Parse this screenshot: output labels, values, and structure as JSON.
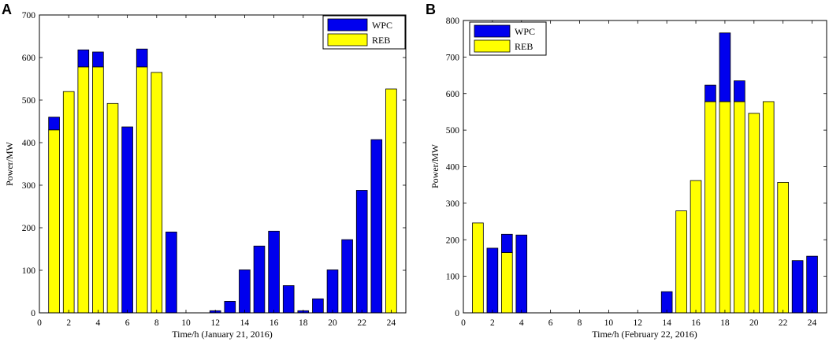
{
  "colors": {
    "wpc": "#0000ee",
    "reb": "#ffff00",
    "axis": "#000000",
    "background": "#ffffff"
  },
  "chart_data": [
    {
      "panel_label": "A",
      "type": "bar",
      "stacked": true,
      "title": "",
      "xlabel": "Time/h (January 21, 2016)",
      "ylabel": "Power/MW",
      "xlim": [
        0,
        25
      ],
      "ylim": [
        0,
        700
      ],
      "xticks": [
        0,
        2,
        4,
        6,
        8,
        10,
        12,
        14,
        16,
        18,
        20,
        22,
        24
      ],
      "yticks": [
        0,
        100,
        200,
        300,
        400,
        500,
        600,
        700
      ],
      "legend_position": "top-right",
      "categories": [
        1,
        2,
        3,
        4,
        5,
        6,
        7,
        8,
        9,
        10,
        11,
        12,
        13,
        14,
        15,
        16,
        17,
        18,
        19,
        20,
        21,
        22,
        23,
        24
      ],
      "series": [
        {
          "name": "WPC",
          "values": [
            30,
            0,
            40,
            35,
            0,
            437,
            42,
            0,
            190,
            0,
            0,
            5,
            27,
            101,
            157,
            192,
            64,
            5,
            33,
            101,
            172,
            288,
            407,
            0
          ]
        },
        {
          "name": "REB",
          "values": [
            430,
            520,
            578,
            578,
            492,
            0,
            578,
            565,
            0,
            0,
            0,
            0,
            0,
            0,
            0,
            0,
            0,
            0,
            0,
            0,
            0,
            0,
            0,
            526
          ]
        }
      ]
    },
    {
      "panel_label": "B",
      "type": "bar",
      "stacked": true,
      "title": "",
      "xlabel": "Time/h (February 22, 2016)",
      "ylabel": "Power/MW",
      "xlim": [
        0,
        25
      ],
      "ylim": [
        0,
        800
      ],
      "xticks": [
        0,
        2,
        4,
        6,
        8,
        10,
        12,
        14,
        16,
        18,
        20,
        22,
        24
      ],
      "yticks": [
        0,
        100,
        200,
        300,
        400,
        500,
        600,
        700,
        800
      ],
      "legend_position": "top-left",
      "categories": [
        1,
        2,
        3,
        4,
        5,
        6,
        7,
        8,
        9,
        10,
        11,
        12,
        13,
        14,
        15,
        16,
        17,
        18,
        19,
        20,
        21,
        22,
        23,
        24
      ],
      "series": [
        {
          "name": "WPC",
          "values": [
            0,
            177,
            50,
            213,
            0,
            0,
            0,
            0,
            0,
            0,
            0,
            0,
            0,
            58,
            0,
            0,
            45,
            188,
            57,
            0,
            0,
            0,
            143,
            155
          ]
        },
        {
          "name": "REB",
          "values": [
            246,
            0,
            165,
            0,
            0,
            0,
            0,
            0,
            0,
            0,
            0,
            0,
            0,
            0,
            279,
            362,
            578,
            578,
            578,
            546,
            578,
            357,
            0,
            0
          ]
        }
      ]
    }
  ]
}
